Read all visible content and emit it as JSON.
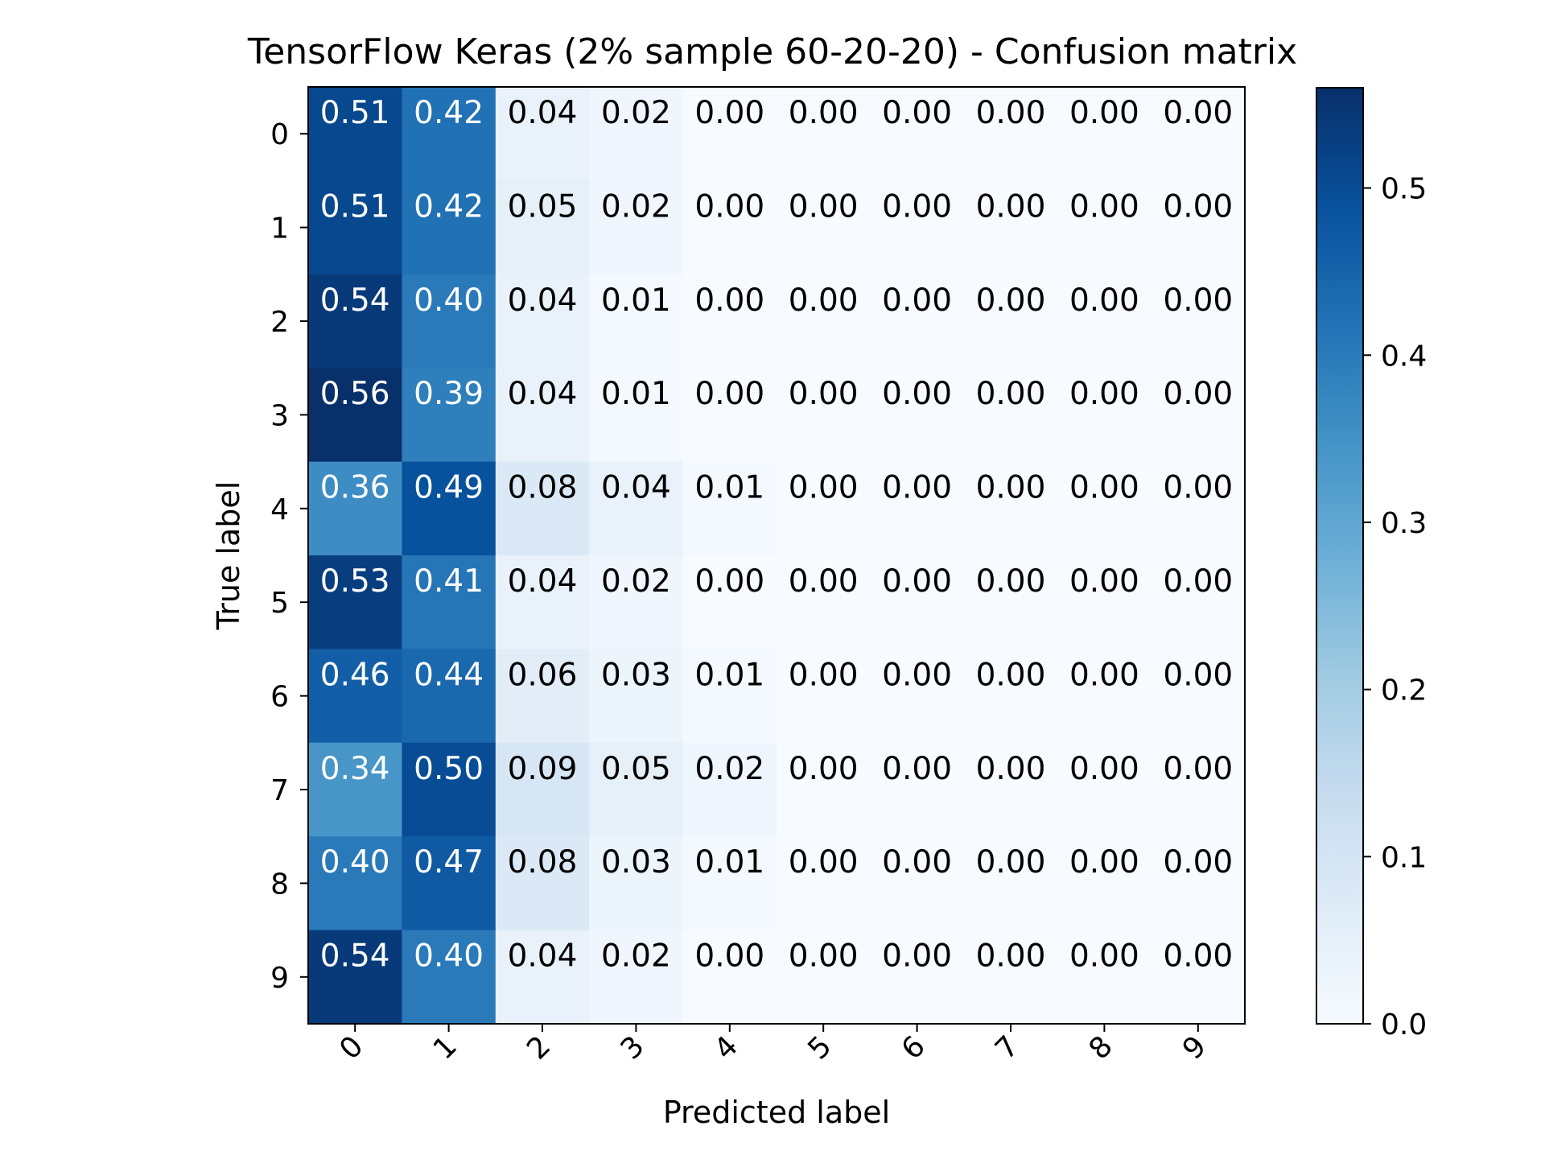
{
  "chart_data": {
    "type": "heatmap",
    "title": "TensorFlow Keras (2% sample 60-20-20) - Confusion matrix",
    "xlabel": "Predicted label",
    "ylabel": "True label",
    "x_categories": [
      "0",
      "1",
      "2",
      "3",
      "4",
      "5",
      "6",
      "7",
      "8",
      "9"
    ],
    "y_categories": [
      "0",
      "1",
      "2",
      "3",
      "4",
      "5",
      "6",
      "7",
      "8",
      "9"
    ],
    "values": [
      [
        0.51,
        0.42,
        0.04,
        0.02,
        0.0,
        0.0,
        0.0,
        0.0,
        0.0,
        0.0
      ],
      [
        0.51,
        0.42,
        0.05,
        0.02,
        0.0,
        0.0,
        0.0,
        0.0,
        0.0,
        0.0
      ],
      [
        0.54,
        0.4,
        0.04,
        0.01,
        0.0,
        0.0,
        0.0,
        0.0,
        0.0,
        0.0
      ],
      [
        0.56,
        0.39,
        0.04,
        0.01,
        0.0,
        0.0,
        0.0,
        0.0,
        0.0,
        0.0
      ],
      [
        0.36,
        0.49,
        0.08,
        0.04,
        0.01,
        0.0,
        0.0,
        0.0,
        0.0,
        0.0
      ],
      [
        0.53,
        0.41,
        0.04,
        0.02,
        0.0,
        0.0,
        0.0,
        0.0,
        0.0,
        0.0
      ],
      [
        0.46,
        0.44,
        0.06,
        0.03,
        0.01,
        0.0,
        0.0,
        0.0,
        0.0,
        0.0
      ],
      [
        0.34,
        0.5,
        0.09,
        0.05,
        0.02,
        0.0,
        0.0,
        0.0,
        0.0,
        0.0
      ],
      [
        0.4,
        0.47,
        0.08,
        0.03,
        0.01,
        0.0,
        0.0,
        0.0,
        0.0,
        0.0
      ],
      [
        0.54,
        0.4,
        0.04,
        0.02,
        0.0,
        0.0,
        0.0,
        0.0,
        0.0,
        0.0
      ]
    ],
    "colormap": "Blues",
    "color_range": [
      0.0,
      0.56
    ],
    "colorbar_ticks": [
      "0.0",
      "0.1",
      "0.2",
      "0.3",
      "0.4",
      "0.5"
    ],
    "colorbar_tick_values": [
      0.0,
      0.1,
      0.2,
      0.3,
      0.4,
      0.5
    ],
    "x_tick_rotation": "45 degrees",
    "text_colors": {
      "light": "#ffffff",
      "dark": "#000000"
    }
  }
}
